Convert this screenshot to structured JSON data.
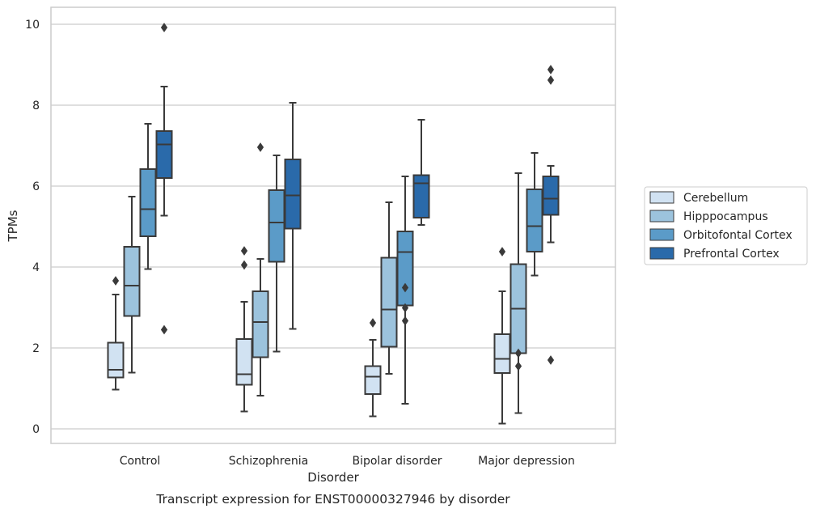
{
  "chart_data": {
    "type": "box",
    "title": "",
    "caption": "Transcript expression for ENST00000327946 by disorder",
    "xlabel": "Disorder",
    "ylabel": "TPMs",
    "ylim": [
      -0.35,
      10.4
    ],
    "yticks": [
      0,
      2,
      4,
      6,
      8,
      10
    ],
    "grid": "horizontal",
    "legend_position": "right",
    "categories": [
      "Control",
      "Schizophrenia",
      "Bipolar disorder",
      "Major depression"
    ],
    "series": [
      {
        "name": "Cerebellum",
        "color": "#d1e2f2",
        "boxes": [
          {
            "whislo": 0.97,
            "q1": 1.27,
            "med": 1.46,
            "q3": 2.13,
            "whishi": 3.32,
            "fliers": [
              3.66
            ]
          },
          {
            "whislo": 0.43,
            "q1": 1.09,
            "med": 1.35,
            "q3": 2.22,
            "whishi": 3.14,
            "fliers": [
              4.05,
              4.4
            ]
          },
          {
            "whislo": 0.31,
            "q1": 0.86,
            "med": 1.29,
            "q3": 1.55,
            "whishi": 2.2,
            "fliers": [
              2.62
            ]
          },
          {
            "whislo": 0.13,
            "q1": 1.38,
            "med": 1.73,
            "q3": 2.34,
            "whishi": 3.4,
            "fliers": [
              4.38
            ]
          }
        ]
      },
      {
        "name": "Hipppocampus",
        "color": "#9cc3dd",
        "boxes": [
          {
            "whislo": 1.39,
            "q1": 2.79,
            "med": 3.54,
            "q3": 4.5,
            "whishi": 5.74,
            "fliers": []
          },
          {
            "whislo": 0.82,
            "q1": 1.77,
            "med": 2.64,
            "q3": 3.4,
            "whishi": 4.2,
            "fliers": [
              6.96
            ]
          },
          {
            "whislo": 1.36,
            "q1": 2.03,
            "med": 2.95,
            "q3": 4.23,
            "whishi": 5.6,
            "fliers": []
          },
          {
            "whislo": 0.39,
            "q1": 1.87,
            "med": 2.97,
            "q3": 4.07,
            "whishi": 6.32,
            "fliers": [
              1.55,
              1.87
            ]
          }
        ]
      },
      {
        "name": "Orbitofontal Cortex",
        "color": "#5b9bc8",
        "boxes": [
          {
            "whislo": 3.95,
            "q1": 4.76,
            "med": 5.43,
            "q3": 6.42,
            "whishi": 7.54,
            "fliers": []
          },
          {
            "whislo": 1.91,
            "q1": 4.13,
            "med": 5.1,
            "q3": 5.9,
            "whishi": 6.76,
            "fliers": []
          },
          {
            "whislo": 0.62,
            "q1": 3.05,
            "med": 4.37,
            "q3": 4.88,
            "whishi": 6.24,
            "fliers": [
              2.67,
              2.99,
              3.49
            ]
          },
          {
            "whislo": 3.79,
            "q1": 4.38,
            "med": 5.01,
            "q3": 5.92,
            "whishi": 6.82,
            "fliers": []
          }
        ]
      },
      {
        "name": "Prefrontal Cortex",
        "color": "#2a6aaa",
        "boxes": [
          {
            "whislo": 5.27,
            "q1": 6.2,
            "med": 7.03,
            "q3": 7.36,
            "whishi": 8.46,
            "fliers": [
              2.45,
              9.92
            ]
          },
          {
            "whislo": 2.47,
            "q1": 4.95,
            "med": 5.77,
            "q3": 6.66,
            "whishi": 8.06,
            "fliers": []
          },
          {
            "whislo": 5.04,
            "q1": 5.22,
            "med": 6.07,
            "q3": 6.27,
            "whishi": 7.64,
            "fliers": []
          },
          {
            "whislo": 4.61,
            "q1": 5.29,
            "med": 5.69,
            "q3": 6.24,
            "whishi": 6.5,
            "fliers": [
              1.7,
              8.62,
              8.88
            ]
          }
        ]
      }
    ]
  }
}
